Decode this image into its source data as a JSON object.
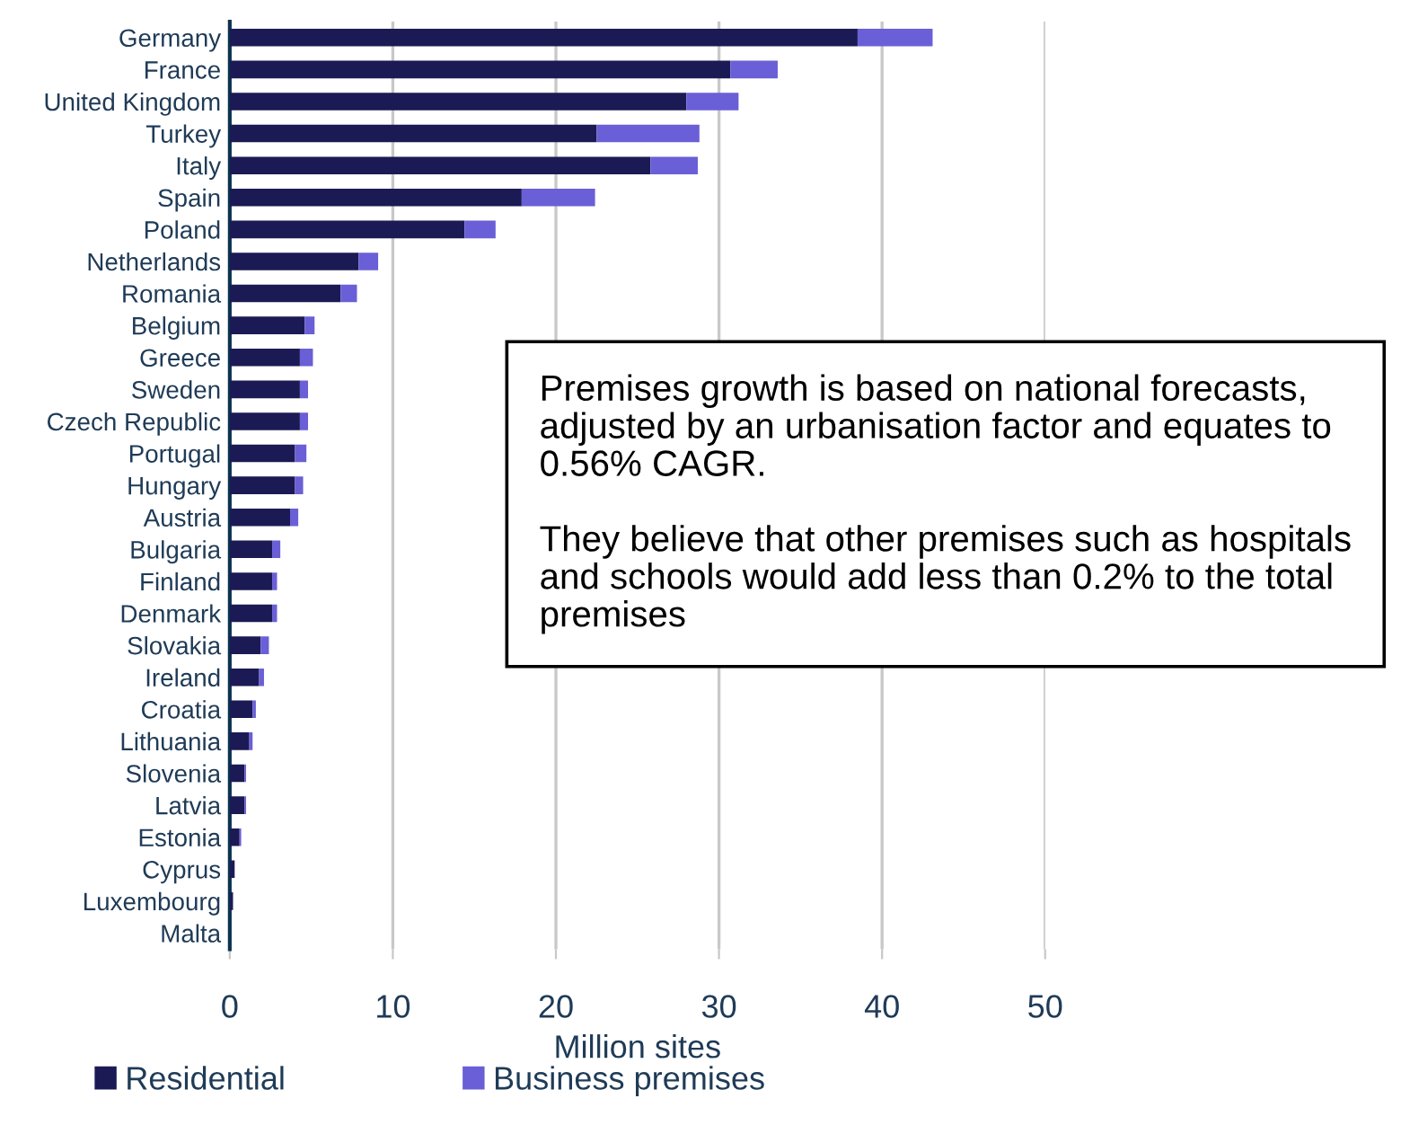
{
  "chart_data": {
    "type": "bar",
    "orientation": "horizontal",
    "stacked": true,
    "categories": [
      "Germany",
      "France",
      "United Kingdom",
      "Turkey",
      "Italy",
      "Spain",
      "Poland",
      "Netherlands",
      "Romania",
      "Belgium",
      "Greece",
      "Sweden",
      "Czech Republic",
      "Portugal",
      "Hungary",
      "Austria",
      "Bulgaria",
      "Finland",
      "Denmark",
      "Slovakia",
      "Ireland",
      "Croatia",
      "Lithuania",
      "Slovenia",
      "Latvia",
      "Estonia",
      "Cyprus",
      "Luxembourg",
      "Malta"
    ],
    "series": [
      {
        "name": "Residential",
        "color": "#1c1a55",
        "values": [
          38.5,
          30.7,
          28.0,
          22.5,
          25.8,
          17.9,
          14.4,
          7.9,
          6.8,
          4.6,
          4.3,
          4.3,
          4.3,
          4.0,
          4.0,
          3.7,
          2.6,
          2.6,
          2.6,
          1.9,
          1.8,
          1.4,
          1.2,
          0.9,
          0.9,
          0.6,
          0.3,
          0.2,
          null
        ]
      },
      {
        "name": "Business premises",
        "color": "#6a5fd6",
        "values": [
          4.6,
          2.9,
          3.2,
          6.3,
          2.9,
          4.5,
          1.9,
          1.2,
          1.0,
          0.6,
          0.8,
          0.5,
          0.5,
          0.7,
          0.5,
          0.5,
          0.5,
          0.3,
          0.3,
          0.5,
          0.3,
          0.2,
          0.2,
          0.1,
          0.1,
          0.1,
          null,
          null,
          null
        ]
      }
    ],
    "xlim": [
      0,
      50
    ],
    "xticks": [
      0,
      10,
      20,
      30,
      40,
      50
    ],
    "xlabel": "Million sites",
    "grid": "x",
    "legend": "bottom",
    "annotations": [
      "Premises growth is based on national forecasts, adjusted by an urbanisation factor and equates to 0.56% CAGR.\n\nThey believe that other premises such as hospitals and schools would add less than 0.2% to the total premises"
    ]
  }
}
